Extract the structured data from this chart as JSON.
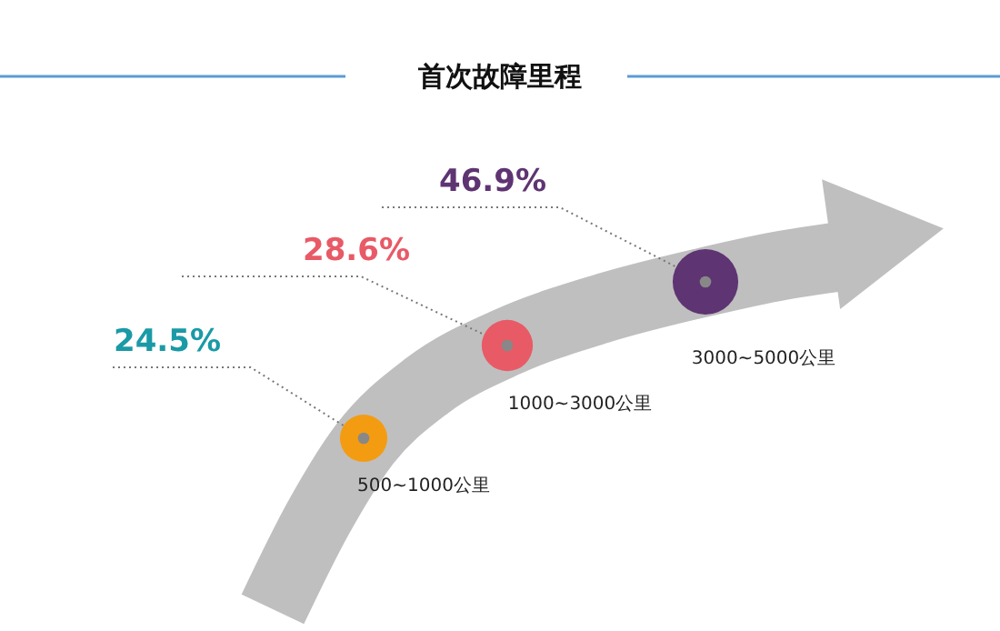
{
  "chart_data": {
    "type": "other",
    "title": "首次故障里程",
    "categories": [
      "500~1000公里",
      "1000~3000公里",
      "3000~5000公里"
    ],
    "values": [
      24.5,
      28.6,
      46.9
    ],
    "colors": [
      "#f39c12",
      "#e85a66",
      "#5e3472"
    ],
    "value_labels": [
      "24.5%",
      "28.6%",
      "46.9%"
    ]
  }
}
